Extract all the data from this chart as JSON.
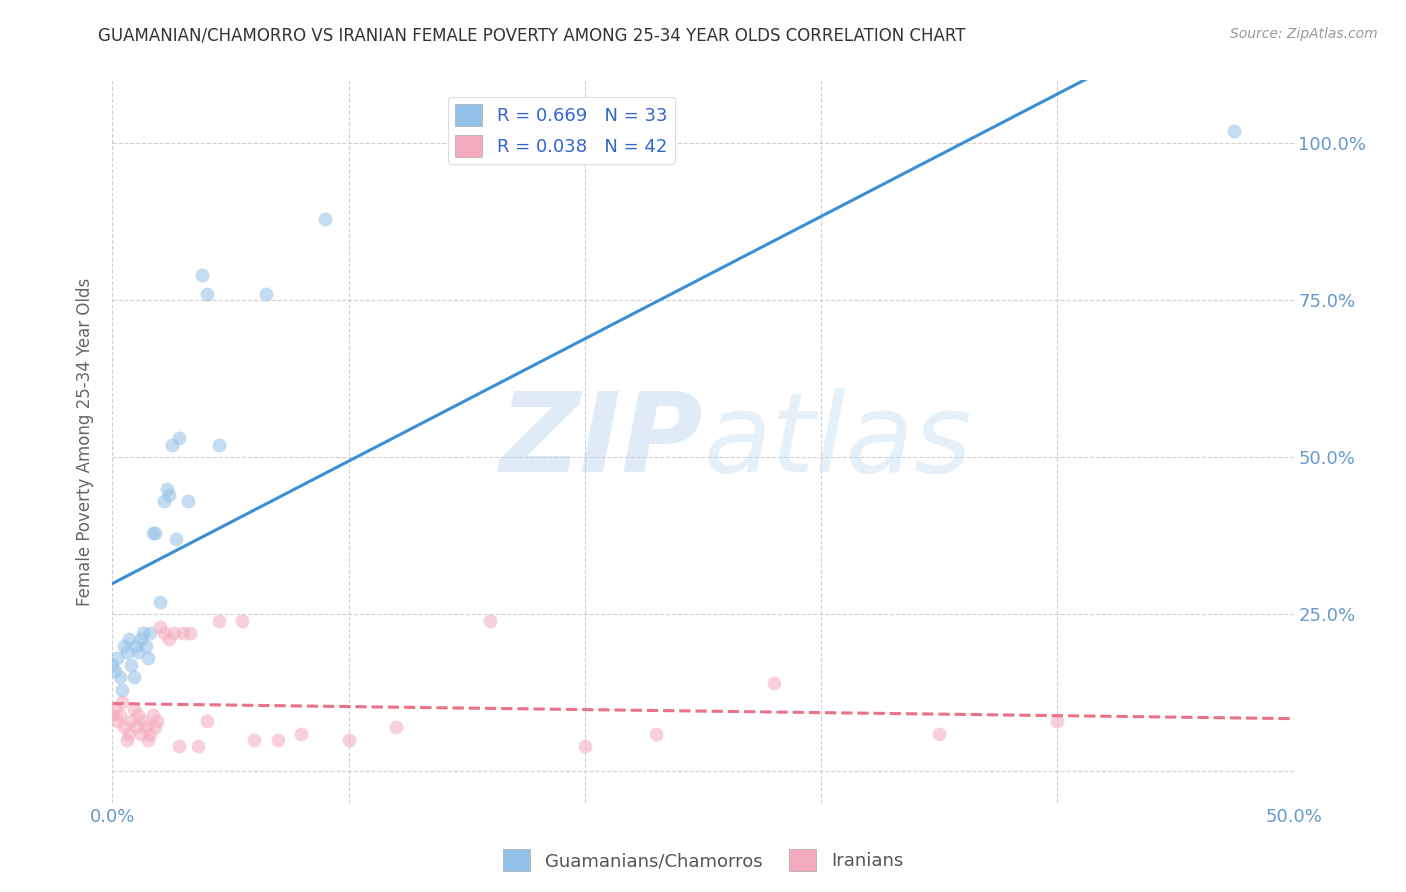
{
  "title": "GUAMANIAN/CHAMORRO VS IRANIAN FEMALE POVERTY AMONG 25-34 YEAR OLDS CORRELATION CHART",
  "source": "Source: ZipAtlas.com",
  "ylabel": "Female Poverty Among 25-34 Year Olds",
  "xlim": [
    0.0,
    0.5
  ],
  "ylim": [
    -0.05,
    1.1
  ],
  "watermark_zip": "ZIP",
  "watermark_atlas": "atlas",
  "legend_label_blue": "R = 0.669   N = 33",
  "legend_label_pink": "R = 0.038   N = 42",
  "legend_label_guam": "Guamanians/Chamorros",
  "legend_label_iran": "Iranians",
  "guamanian_color": "#92C0E8",
  "iranian_color": "#F4AABF",
  "guamanian_line_color": "#3A8FD4",
  "iranian_line_color": "#E8728A",
  "background_color": "#ffffff",
  "grid_color": "#cccccc",
  "title_color": "#333333",
  "axis_label_color": "#666666",
  "tick_color": "#6699cc",
  "marker_size": 100,
  "marker_alpha": 0.55,
  "line_width": 2.2,
  "guamanian_x": [
    0.0,
    0.001,
    0.002,
    0.003,
    0.004,
    0.005,
    0.006,
    0.007,
    0.008,
    0.009,
    0.01,
    0.011,
    0.012,
    0.013,
    0.014,
    0.015,
    0.016,
    0.017,
    0.018,
    0.02,
    0.022,
    0.023,
    0.024,
    0.025,
    0.027,
    0.028,
    0.032,
    0.038,
    0.04,
    0.045,
    0.065,
    0.09,
    0.475
  ],
  "guamanian_y": [
    0.17,
    0.16,
    0.18,
    0.15,
    0.13,
    0.2,
    0.19,
    0.21,
    0.17,
    0.15,
    0.2,
    0.19,
    0.21,
    0.22,
    0.2,
    0.18,
    0.22,
    0.38,
    0.38,
    0.27,
    0.43,
    0.45,
    0.44,
    0.52,
    0.37,
    0.53,
    0.43,
    0.79,
    0.76,
    0.52,
    0.76,
    0.88,
    1.02
  ],
  "iranian_x": [
    0.0,
    0.001,
    0.002,
    0.003,
    0.004,
    0.005,
    0.006,
    0.007,
    0.008,
    0.009,
    0.01,
    0.011,
    0.012,
    0.013,
    0.014,
    0.015,
    0.016,
    0.017,
    0.018,
    0.019,
    0.02,
    0.022,
    0.024,
    0.026,
    0.028,
    0.03,
    0.033,
    0.036,
    0.04,
    0.045,
    0.055,
    0.06,
    0.07,
    0.08,
    0.1,
    0.12,
    0.16,
    0.2,
    0.23,
    0.28,
    0.35,
    0.4
  ],
  "iranian_y": [
    0.09,
    0.1,
    0.08,
    0.09,
    0.11,
    0.07,
    0.05,
    0.06,
    0.08,
    0.1,
    0.07,
    0.09,
    0.06,
    0.08,
    0.07,
    0.05,
    0.06,
    0.09,
    0.07,
    0.08,
    0.23,
    0.22,
    0.21,
    0.22,
    0.04,
    0.22,
    0.22,
    0.04,
    0.08,
    0.24,
    0.24,
    0.05,
    0.05,
    0.06,
    0.05,
    0.07,
    0.24,
    0.04,
    0.06,
    0.14,
    0.06,
    0.08
  ]
}
